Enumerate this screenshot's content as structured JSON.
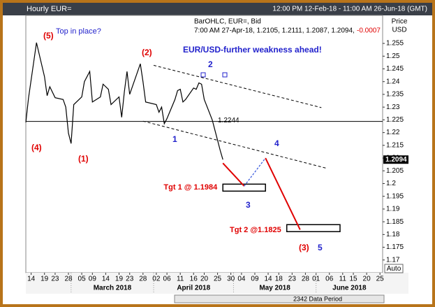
{
  "header": {
    "title": "Hourly EUR=",
    "range": "12:00 PM 12-Feb-18 - 11:00 AM 26-Jun-18 (GMT)"
  },
  "chart_data": {
    "type": "line",
    "info": [
      "BarOHLC, EUR=, Bid",
      "7:00 AM 27-Apr-18, 1.2105, 1.2111, 1.2087, 1.2094,"
    ],
    "change": "-0.0007",
    "y_axis_label": [
      "Price",
      "USD"
    ],
    "color": "#000000",
    "x": [
      "2018-02-12",
      "2018-02-13",
      "2018-02-15",
      "2018-02-16",
      "2018-02-19",
      "2018-02-20",
      "2018-02-21",
      "2018-02-23",
      "2018-02-26",
      "2018-02-27",
      "2018-02-28",
      "2018-03-01",
      "2018-03-02",
      "2018-03-05",
      "2018-03-06",
      "2018-03-08",
      "2018-03-09",
      "2018-03-12",
      "2018-03-13",
      "2018-03-15",
      "2018-03-16",
      "2018-03-19",
      "2018-03-20",
      "2018-03-21",
      "2018-03-22",
      "2018-03-23",
      "2018-03-26",
      "2018-03-27",
      "2018-03-28",
      "2018-03-29",
      "2018-04-02",
      "2018-04-03",
      "2018-04-04",
      "2018-04-05",
      "2018-04-06",
      "2018-04-09",
      "2018-04-10",
      "2018-04-11",
      "2018-04-12",
      "2018-04-13",
      "2018-04-16",
      "2018-04-17",
      "2018-04-18",
      "2018-04-19",
      "2018-04-20",
      "2018-04-23",
      "2018-04-24",
      "2018-04-25",
      "2018-04-26",
      "2018-04-27"
    ],
    "values": [
      1.224,
      1.2335,
      1.248,
      1.2553,
      1.242,
      1.2345,
      1.238,
      1.2337,
      1.233,
      1.23,
      1.2198,
      1.2157,
      1.231,
      1.234,
      1.24,
      1.244,
      1.232,
      1.234,
      1.239,
      1.237,
      1.231,
      1.234,
      1.226,
      1.236,
      1.244,
      1.235,
      1.244,
      1.247,
      1.24,
      1.232,
      1.231,
      1.228,
      1.23,
      1.2235,
      1.2255,
      1.233,
      1.2365,
      1.237,
      1.232,
      1.233,
      1.2375,
      1.237,
      1.2395,
      1.239,
      1.233,
      1.225,
      1.221,
      1.217,
      1.213,
      1.2094
    ],
    "reference_line": {
      "value": 1.2244
    },
    "trendlines": [
      {
        "x": [
          "2018-04-01",
          "2018-06-03"
        ],
        "values": [
          1.2464,
          1.2298
        ]
      },
      {
        "x": [
          "2018-03-28",
          "2018-06-05"
        ],
        "values": [
          1.2245,
          1.206
        ]
      }
    ],
    "projection": [
      {
        "color": "#e00000",
        "dash": false,
        "x": [
          "2018-04-27",
          "2018-05-05"
        ],
        "values": [
          1.208,
          1.199
        ]
      },
      {
        "color": "#3355dd",
        "dash": true,
        "x": [
          "2018-05-05",
          "2018-05-13"
        ],
        "values": [
          1.199,
          1.21
        ]
      },
      {
        "color": "#e00000",
        "dash": false,
        "x": [
          "2018-05-13",
          "2018-05-26"
        ],
        "values": [
          1.21,
          1.1819
        ]
      }
    ],
    "targets": [
      {
        "label": "Tgt 1 @ 1.1984",
        "value": 1.1984,
        "x": [
          "2018-04-27",
          "2018-05-13"
        ]
      },
      {
        "label": "Tgt 2 @1.1825",
        "value": 1.1825,
        "x": [
          "2018-05-21",
          "2018-06-10"
        ]
      }
    ],
    "annotations": [
      {
        "text": "(5)",
        "color": "#e00000"
      },
      {
        "text": "Top in place?",
        "color": "#2222cc"
      },
      {
        "text": "(2)",
        "color": "#e00000"
      },
      {
        "text": "EUR/USD-further weakness ahead!",
        "color": "#2222cc"
      },
      {
        "text": "2",
        "color": "#2222cc"
      },
      {
        "text": "1",
        "color": "#2222cc"
      },
      {
        "text": "(4)",
        "color": "#e00000"
      },
      {
        "text": "(1)",
        "color": "#e00000"
      },
      {
        "text": "4",
        "color": "#2222cc"
      },
      {
        "text": "3",
        "color": "#2222cc"
      },
      {
        "text": "(3)",
        "color": "#e00000"
      },
      {
        "text": "5",
        "color": "#2222cc"
      }
    ],
    "xlim": [
      "2018-02-12",
      "2018-06-26"
    ],
    "xticks": [
      {
        "value": "2018-02-14",
        "label": "14"
      },
      {
        "value": "2018-02-19",
        "label": "19"
      },
      {
        "value": "2018-02-23",
        "label": "23"
      },
      {
        "value": "2018-02-28",
        "label": "28"
      },
      {
        "value": "2018-03-05",
        "label": "05"
      },
      {
        "value": "2018-03-09",
        "label": "09"
      },
      {
        "value": "2018-03-14",
        "label": "14"
      },
      {
        "value": "2018-03-19",
        "label": "19"
      },
      {
        "value": "2018-03-23",
        "label": "23"
      },
      {
        "value": "2018-03-28",
        "label": "28"
      },
      {
        "value": "2018-04-02",
        "label": "02"
      },
      {
        "value": "2018-04-06",
        "label": "06"
      },
      {
        "value": "2018-04-11",
        "label": "11"
      },
      {
        "value": "2018-04-16",
        "label": "16"
      },
      {
        "value": "2018-04-20",
        "label": "20"
      },
      {
        "value": "2018-04-25",
        "label": "25"
      },
      {
        "value": "2018-04-30",
        "label": "30"
      },
      {
        "value": "2018-05-04",
        "label": "04"
      },
      {
        "value": "2018-05-09",
        "label": "09"
      },
      {
        "value": "2018-05-14",
        "label": "14"
      },
      {
        "value": "2018-05-18",
        "label": "18"
      },
      {
        "value": "2018-05-23",
        "label": "23"
      },
      {
        "value": "2018-05-28",
        "label": "28"
      },
      {
        "value": "2018-06-01",
        "label": "01"
      },
      {
        "value": "2018-06-06",
        "label": "06"
      },
      {
        "value": "2018-06-11",
        "label": "11"
      },
      {
        "value": "2018-06-15",
        "label": "15"
      },
      {
        "value": "2018-06-20",
        "label": "20"
      },
      {
        "value": "2018-06-25",
        "label": "25"
      }
    ],
    "months": [
      "March 2018",
      "April 2018",
      "May 2018",
      "June 2018"
    ],
    "ylim": [
      1.165,
      1.266
    ],
    "yticks": [
      1.17,
      1.175,
      1.18,
      1.185,
      1.19,
      1.195,
      1.2,
      1.205,
      1.21,
      1.215,
      1.22,
      1.225,
      1.23,
      1.235,
      1.24,
      1.245,
      1.25,
      1.255
    ],
    "auto": "Auto"
  },
  "footer": "2342 Data Period"
}
